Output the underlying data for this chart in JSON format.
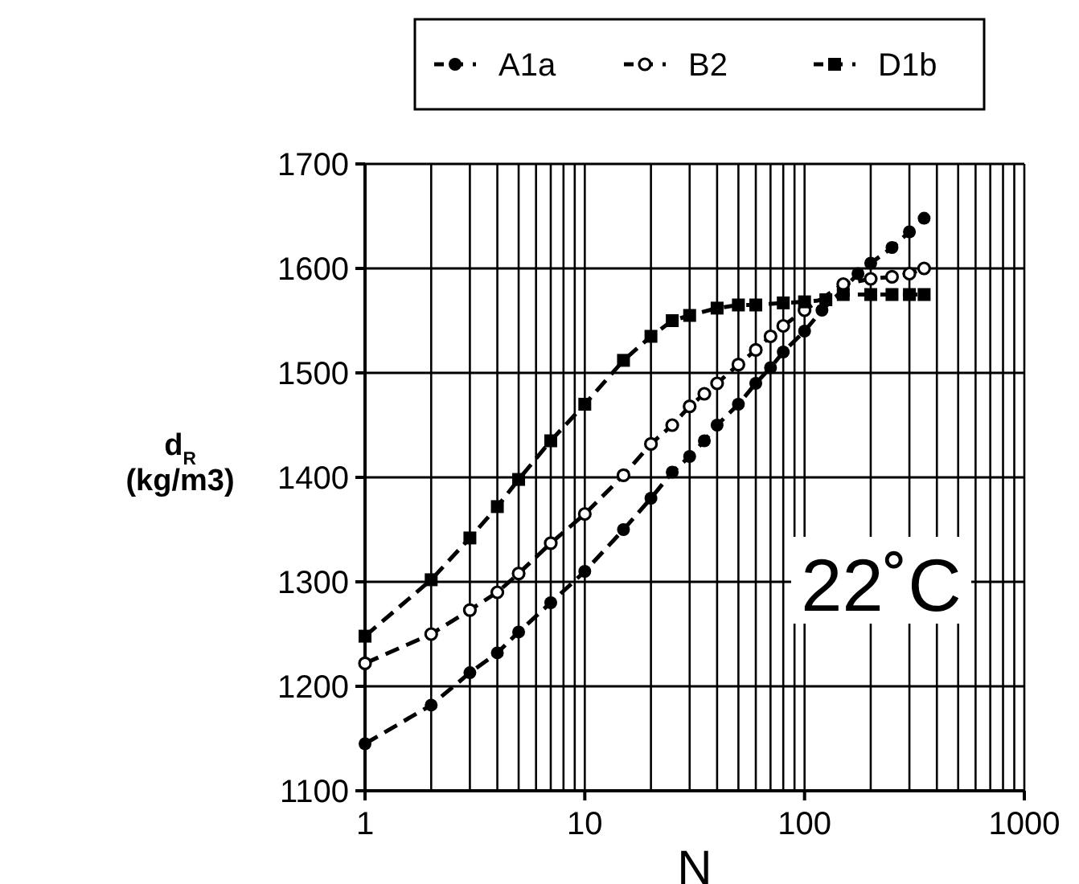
{
  "chart_data": {
    "type": "line",
    "xlabel": "N",
    "ylabel": "d$_{R}$ (kg/m3)",
    "log": "x",
    "grid": true,
    "legend": "top",
    "line_style": "dashed",
    "xlim": [
      1,
      1000
    ],
    "xticks": [
      1,
      10,
      100,
      1000
    ],
    "ylim": [
      1100,
      1700
    ],
    "yticks": [
      1100,
      1200,
      1300,
      1400,
      1500,
      1600,
      1700
    ],
    "annotations": [
      "22˚C"
    ],
    "series": [
      {
        "name": "A1a",
        "color": "#000000",
        "marker": "circle",
        "x": [
          1,
          2,
          3,
          4,
          5,
          7,
          10,
          15,
          20,
          25,
          30,
          35,
          40,
          50,
          60,
          70,
          80,
          100,
          120,
          150,
          175,
          200,
          250,
          300,
          350
        ],
        "values": [
          1145,
          1182,
          1213,
          1232,
          1252,
          1280,
          1310,
          1350,
          1380,
          1405,
          1420,
          1435,
          1450,
          1470,
          1490,
          1505,
          1520,
          1540,
          1560,
          1580,
          1595,
          1605,
          1620,
          1635,
          1648
        ]
      },
      {
        "name": "B2",
        "color": "#000000",
        "marker": "open-circle",
        "x": [
          1,
          2,
          3,
          4,
          5,
          7,
          10,
          15,
          20,
          25,
          30,
          35,
          40,
          50,
          60,
          70,
          80,
          100,
          120,
          150,
          200,
          250,
          300,
          350
        ],
        "values": [
          1222,
          1250,
          1273,
          1290,
          1308,
          1337,
          1365,
          1402,
          1432,
          1450,
          1468,
          1480,
          1490,
          1508,
          1522,
          1535,
          1545,
          1560,
          null,
          1585,
          1590,
          1592,
          1595,
          1600
        ]
      },
      {
        "name": "D1b",
        "color": "#000000",
        "marker": "square",
        "x": [
          1,
          2,
          3,
          4,
          5,
          7,
          10,
          15,
          20,
          25,
          30,
          40,
          50,
          60,
          80,
          100,
          125,
          150,
          200,
          250,
          300,
          350
        ],
        "values": [
          1248,
          1302,
          1342,
          1372,
          1398,
          1435,
          1470,
          1512,
          1535,
          1550,
          1555,
          1562,
          1565,
          1565,
          1567,
          1568,
          1570,
          1575,
          1575,
          1575,
          1575,
          1575
        ]
      }
    ]
  }
}
